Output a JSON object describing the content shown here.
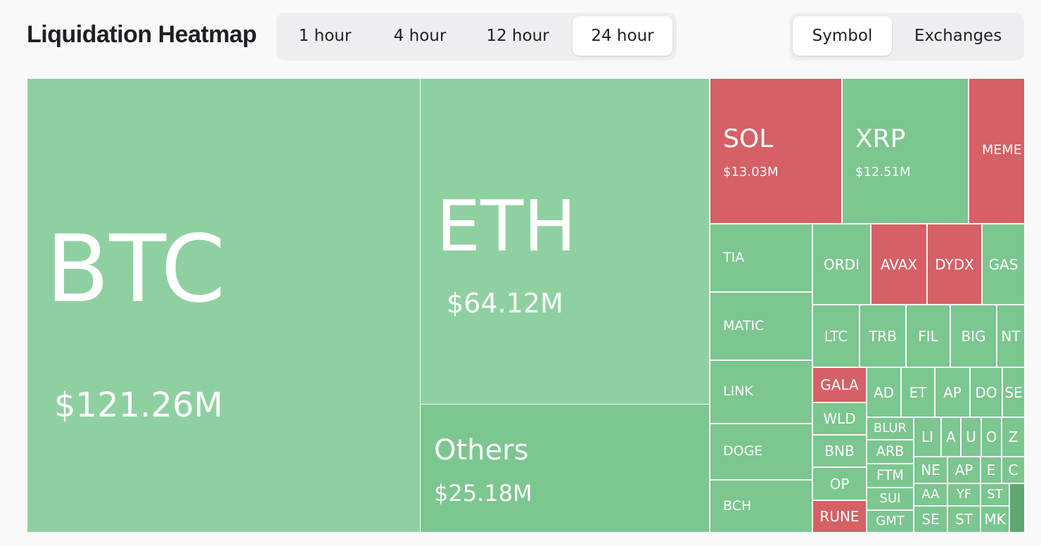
{
  "header": {
    "title": "Liquidation Heatmap",
    "periods": [
      "1 hour",
      "4 hour",
      "12 hour",
      "24 hour"
    ],
    "active_period": 3,
    "views": [
      "Symbol",
      "Exchanges"
    ],
    "active_view": 0
  },
  "tiles": [
    {
      "label": "BTC",
      "value": "$121.26M",
      "color": "#8fd0a1"
    },
    {
      "label": "ETH",
      "value": "$64.12M",
      "color": "#8fd0a1"
    },
    {
      "label": "Others",
      "value": "$25.18M",
      "color": "#7cc68f"
    },
    {
      "label": "SOL",
      "value": "$13.03M",
      "color": "#d56066"
    },
    {
      "label": "XRP",
      "value": "$12.51M",
      "color": "#7cc68f"
    },
    {
      "label": "MEME",
      "color": "#d56066"
    },
    {
      "label": "TIA",
      "color": "#7cc68f"
    },
    {
      "label": "MATIC",
      "color": "#7cc68f"
    },
    {
      "label": "LINK",
      "color": "#7cc68f"
    },
    {
      "label": "DOGE",
      "color": "#7cc68f"
    },
    {
      "label": "BCH",
      "color": "#7cc68f"
    },
    {
      "label": "ORDI",
      "color": "#7cc68f"
    },
    {
      "label": "AVAX",
      "color": "#d56066"
    },
    {
      "label": "DYDX",
      "color": "#d56066"
    },
    {
      "label": "GAS",
      "color": "#7cc68f"
    },
    {
      "label": "LTC",
      "color": "#7cc68f"
    },
    {
      "label": "TRB",
      "color": "#7cc68f"
    },
    {
      "label": "FIL",
      "color": "#7cc68f"
    },
    {
      "label": "BIG",
      "color": "#7cc68f"
    },
    {
      "label": "NT",
      "color": "#7cc68f"
    },
    {
      "label": "GALA",
      "color": "#d56066"
    },
    {
      "label": "WLD",
      "color": "#7cc68f"
    },
    {
      "label": "BNB",
      "color": "#7cc68f"
    },
    {
      "label": "OP",
      "color": "#7cc68f"
    },
    {
      "label": "RUNE",
      "color": "#d56066"
    },
    {
      "label": "AD",
      "color": "#7cc68f"
    },
    {
      "label": "ET",
      "color": "#7cc68f"
    },
    {
      "label": "AP",
      "color": "#7cc68f"
    },
    {
      "label": "DO",
      "color": "#7cc68f"
    },
    {
      "label": "SE",
      "color": "#7cc68f"
    },
    {
      "label": "BLUR",
      "color": "#7cc68f"
    },
    {
      "label": "ARB",
      "color": "#7cc68f"
    },
    {
      "label": "FTM",
      "color": "#7cc68f"
    },
    {
      "label": "SUI",
      "color": "#7cc68f"
    },
    {
      "label": "GMT",
      "color": "#7cc68f"
    },
    {
      "label": "LI",
      "color": "#7cc68f"
    },
    {
      "label": "A",
      "color": "#7cc68f"
    },
    {
      "label": "U",
      "color": "#7cc68f"
    },
    {
      "label": "O",
      "color": "#7cc68f"
    },
    {
      "label": "Z",
      "color": "#7cc68f"
    },
    {
      "label": "NE",
      "color": "#7cc68f"
    },
    {
      "label": "AP",
      "color": "#7cc68f"
    },
    {
      "label": "E",
      "color": "#7cc68f"
    },
    {
      "label": "C",
      "color": "#7cc68f"
    },
    {
      "label": "AA",
      "color": "#7cc68f"
    },
    {
      "label": "YF",
      "color": "#7cc68f"
    },
    {
      "label": "ST",
      "color": "#7cc68f"
    },
    {
      "label": "SE",
      "color": "#7cc68f"
    },
    {
      "label": "ST",
      "color": "#7cc68f"
    },
    {
      "label": "MK",
      "color": "#7cc68f"
    },
    {
      "color": "#5fa872"
    }
  ]
}
